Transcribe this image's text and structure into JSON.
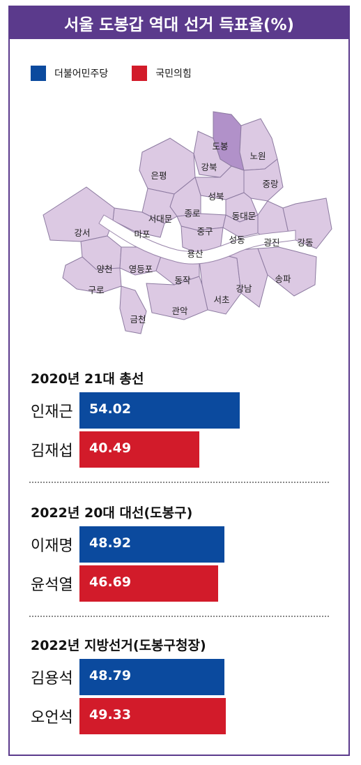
{
  "title": "서울 도봉갑 역대 선거 득표율(%)",
  "legend": [
    {
      "name": "더불어민주당",
      "color": "#0b4a9e"
    },
    {
      "name": "국민의힘",
      "color": "#d21b2a"
    }
  ],
  "map": {
    "districts": [
      "도봉",
      "노원",
      "강북",
      "은평",
      "성북",
      "중랑",
      "종로",
      "서대문",
      "동대문",
      "마포",
      "중구",
      "성동",
      "광진",
      "강동",
      "강서",
      "용산",
      "양천",
      "영등포",
      "동작",
      "구로",
      "서초",
      "강남",
      "송파",
      "금천",
      "관악"
    ],
    "highlighted": "도봉",
    "fill": "#dcc9e3",
    "highlight_fill": "#b191c9",
    "river": "#ffffff"
  },
  "chart_data": [
    {
      "type": "bar",
      "title": "2020년 21대 총선",
      "categories": [
        "인재근",
        "김재섭"
      ],
      "values": [
        54.02,
        40.49
      ],
      "colors": [
        "#0b4a9e",
        "#d21b2a"
      ]
    },
    {
      "type": "bar",
      "title": "2022년 20대 대선(도봉구)",
      "categories": [
        "이재명",
        "윤석열"
      ],
      "values": [
        48.92,
        46.69
      ],
      "colors": [
        "#0b4a9e",
        "#d21b2a"
      ]
    },
    {
      "type": "bar",
      "title": "2022년 지방선거(도봉구청장)",
      "categories": [
        "김용석",
        "오언석"
      ],
      "values": [
        48.79,
        49.33
      ],
      "colors": [
        "#0b4a9e",
        "#d21b2a"
      ]
    }
  ]
}
